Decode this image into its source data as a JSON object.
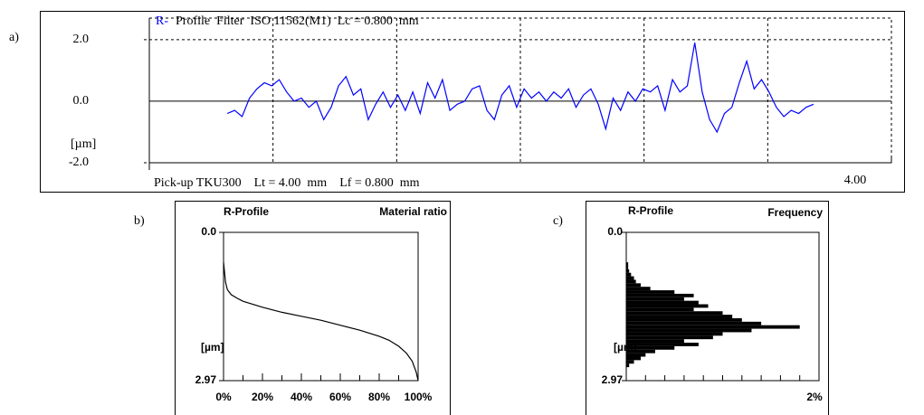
{
  "chart_data": [
    {
      "type": "line",
      "panel_label": "a)",
      "title_prefix": "R-",
      "title": "Profile  Filter  ISO 11562(M1)  Lc = 0.800  mm",
      "subtitle": "Pick-up TKU300    Lt = 4.00  mm    Lf = 0.800  mm",
      "y_label": "[µm]",
      "color": "#0000ff",
      "grid": true,
      "xlim": [
        0,
        4
      ],
      "xticks": [
        {
          "value": 4,
          "label": "4.00"
        }
      ],
      "ylim": [
        -2,
        2.7
      ],
      "yticks": [
        {
          "value": 2,
          "label": "2.0"
        },
        {
          "value": 0,
          "label": "0.0"
        },
        {
          "value": -2,
          "label": "-2.0"
        }
      ],
      "x": [
        0.42,
        0.46,
        0.5,
        0.54,
        0.58,
        0.62,
        0.66,
        0.7,
        0.74,
        0.78,
        0.82,
        0.86,
        0.9,
        0.94,
        0.98,
        1.02,
        1.06,
        1.1,
        1.14,
        1.18,
        1.22,
        1.26,
        1.3,
        1.34,
        1.38,
        1.42,
        1.46,
        1.5,
        1.54,
        1.58,
        1.62,
        1.66,
        1.7,
        1.74,
        1.78,
        1.82,
        1.86,
        1.9,
        1.94,
        1.98,
        2.02,
        2.06,
        2.1,
        2.14,
        2.18,
        2.22,
        2.26,
        2.3,
        2.34,
        2.38,
        2.42,
        2.46,
        2.5,
        2.54,
        2.58,
        2.62,
        2.66,
        2.7,
        2.74,
        2.78,
        2.82,
        2.86,
        2.9,
        2.94,
        2.98,
        3.02,
        3.06,
        3.1,
        3.14,
        3.18,
        3.22,
        3.26,
        3.3,
        3.34,
        3.38,
        3.42,
        3.46,
        3.5,
        3.54,
        3.58
      ],
      "values": [
        -0.4,
        -0.3,
        -0.5,
        0.1,
        0.4,
        0.6,
        0.5,
        0.7,
        0.3,
        0.0,
        0.1,
        -0.2,
        0.0,
        -0.6,
        -0.2,
        0.5,
        0.8,
        0.2,
        0.4,
        -0.6,
        -0.1,
        0.3,
        -0.2,
        0.2,
        -0.3,
        0.3,
        -0.4,
        0.6,
        0.1,
        0.7,
        -0.3,
        -0.1,
        0.0,
        0.4,
        0.5,
        -0.3,
        -0.6,
        0.2,
        0.5,
        -0.2,
        0.4,
        0.1,
        0.3,
        0.0,
        0.3,
        0.1,
        0.4,
        -0.2,
        0.2,
        0.4,
        -0.1,
        -0.9,
        0.1,
        -0.3,
        0.3,
        0.0,
        0.4,
        0.3,
        0.5,
        -0.3,
        0.7,
        0.3,
        0.5,
        1.9,
        0.3,
        -0.6,
        -1.0,
        -0.4,
        -0.2,
        0.6,
        1.3,
        0.4,
        0.7,
        0.3,
        -0.2,
        -0.5,
        -0.3,
        -0.4,
        -0.2,
        -0.1
      ]
    },
    {
      "type": "line",
      "panel_label": "b)",
      "title": "R-Profile",
      "subtitle": "Material ratio",
      "y_label": "[µm]",
      "color": "#000000",
      "xlim": [
        0,
        100
      ],
      "xticks": [
        {
          "value": 0,
          "label": "0%"
        },
        {
          "value": 20,
          "label": "20%"
        },
        {
          "value": 40,
          "label": "40%"
        },
        {
          "value": 60,
          "label": "60%"
        },
        {
          "value": 80,
          "label": "80%"
        },
        {
          "value": 100,
          "label": "100%"
        }
      ],
      "ylim": [
        2.97,
        0
      ],
      "yticks": [
        {
          "value": 0,
          "label": "0.0"
        },
        2.97
      ],
      "x": [
        0,
        1,
        2,
        4,
        7,
        10,
        20,
        30,
        40,
        50,
        60,
        70,
        80,
        85,
        90,
        94,
        97,
        99,
        100
      ],
      "values": [
        0.6,
        1.0,
        1.15,
        1.25,
        1.32,
        1.38,
        1.5,
        1.6,
        1.68,
        1.76,
        1.86,
        1.96,
        2.08,
        2.16,
        2.28,
        2.42,
        2.58,
        2.8,
        2.97
      ]
    },
    {
      "type": "histogram",
      "panel_label": "c)",
      "title": "R-Profile",
      "subtitle": "Frequency",
      "y_label": "[µm]",
      "color": "#000000",
      "xlim": [
        0,
        2
      ],
      "xticks": [
        {
          "value": 2,
          "label": "2%"
        }
      ],
      "ylim": [
        2.97,
        0
      ],
      "yticks": [
        {
          "value": 0,
          "label": "0.0"
        },
        2.97
      ],
      "bins": [
        0.6,
        0.67,
        0.74,
        0.81,
        0.88,
        0.95,
        1.02,
        1.09,
        1.16,
        1.23,
        1.3,
        1.37,
        1.44,
        1.51,
        1.58,
        1.65,
        1.72,
        1.79,
        1.86,
        1.93,
        2.0,
        2.07,
        2.14,
        2.21,
        2.28,
        2.35,
        2.42,
        2.49,
        2.56,
        2.63,
        2.7
      ],
      "values": [
        0.02,
        0.02,
        0.03,
        0.05,
        0.08,
        0.1,
        0.15,
        0.25,
        0.5,
        0.7,
        0.6,
        0.75,
        0.85,
        0.7,
        1.0,
        1.1,
        1.2,
        1.4,
        1.8,
        1.3,
        1.0,
        0.9,
        0.6,
        0.75,
        0.5,
        0.3,
        0.2,
        0.15,
        0.08,
        0.03
      ]
    }
  ]
}
